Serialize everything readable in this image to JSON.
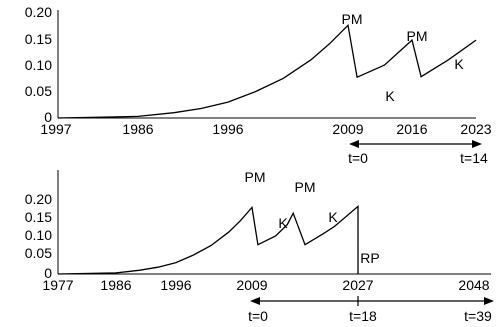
{
  "chart_data": [
    {
      "type": "line",
      "x_ticks": [
        "1997",
        "1986",
        "1996",
        "2009",
        "2016",
        "2023"
      ],
      "y_ticks": [
        "0",
        "0.05",
        "0.10",
        "0.15",
        "0.20"
      ],
      "ylim": [
        0,
        0.2
      ],
      "grid": false,
      "series": [
        {
          "x": [
            1997,
            1986,
            1990,
            1993,
            1996,
            1999,
            2002,
            2005,
            2007,
            2009,
            2010,
            2013,
            2016,
            2017,
            2020,
            2023
          ],
          "y": [
            0.0,
            0.003,
            0.01,
            0.018,
            0.03,
            0.05,
            0.075,
            0.11,
            0.14,
            0.175,
            0.077,
            0.1,
            0.147,
            0.078,
            0.11,
            0.147
          ]
        }
      ],
      "annotations": [
        "PM",
        "PM",
        "K",
        "K"
      ],
      "time_markers": [
        "t=0",
        "t=14"
      ]
    },
    {
      "type": "line",
      "x_ticks": [
        "1977",
        "1986",
        "1996",
        "2009",
        "2027",
        "2048"
      ],
      "y_ticks": [
        "0",
        "0.05",
        "0.10",
        "0.15",
        "0.20"
      ],
      "ylim": [
        0,
        0.2
      ],
      "grid": false,
      "series": [
        {
          "x": [
            1977,
            1986,
            1990,
            1993,
            1996,
            1999,
            2002,
            2005,
            2007,
            2009,
            2010,
            2013,
            2015,
            2016,
            2018,
            2021,
            2023,
            2027,
            2027
          ],
          "y": [
            0.0,
            0.003,
            0.01,
            0.018,
            0.03,
            0.05,
            0.075,
            0.11,
            0.14,
            0.175,
            0.077,
            0.1,
            0.13,
            0.16,
            0.077,
            0.105,
            0.125,
            0.178,
            0.0
          ]
        }
      ],
      "annotations": [
        "PM",
        "PM",
        "K",
        "K",
        "RP"
      ],
      "time_markers": [
        "t=0",
        "t=18",
        "t=39"
      ]
    }
  ]
}
